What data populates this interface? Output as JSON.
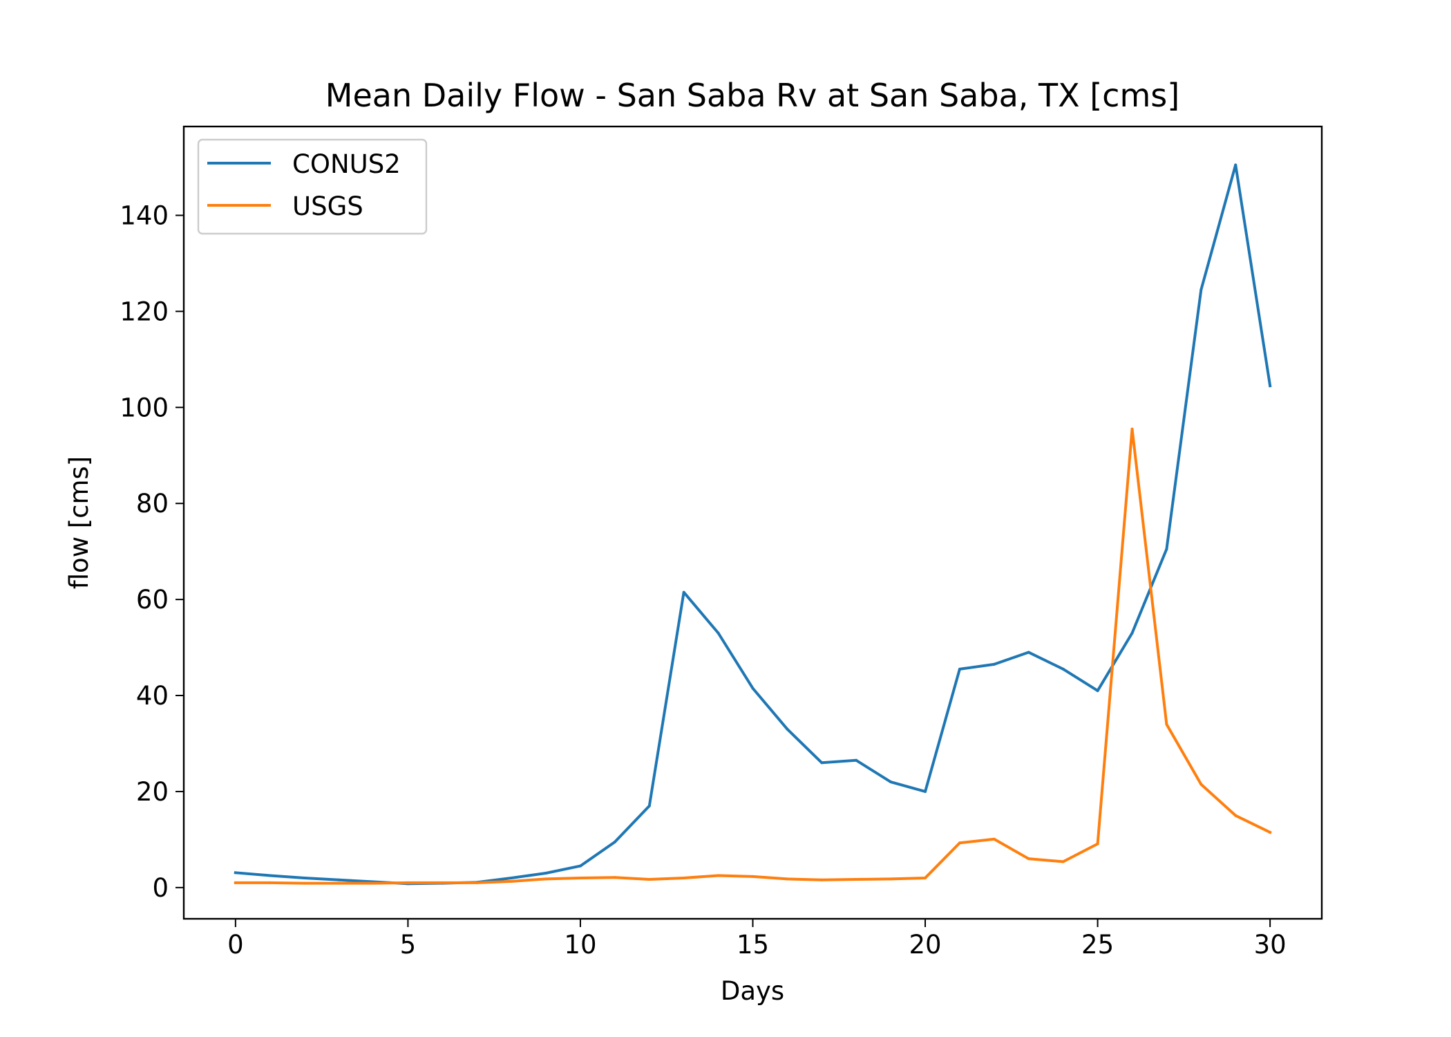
{
  "chart_data": {
    "type": "line",
    "title": "Mean Daily Flow - San Saba Rv at San Saba, TX [cms]",
    "xlabel": "Days",
    "ylabel": "flow [cms]",
    "xlim": [
      -1.5,
      31.5
    ],
    "ylim": [
      -6.5,
      158.5
    ],
    "xticks": [
      0,
      5,
      10,
      15,
      20,
      25,
      30
    ],
    "yticks": [
      0,
      20,
      40,
      60,
      80,
      100,
      120,
      140
    ],
    "grid": false,
    "legend_position": "upper left",
    "x": [
      0,
      1,
      2,
      3,
      4,
      5,
      6,
      7,
      8,
      9,
      10,
      11,
      12,
      13,
      14,
      15,
      16,
      17,
      18,
      19,
      20,
      21,
      22,
      23,
      24,
      25,
      26,
      27,
      28,
      29,
      30
    ],
    "series": [
      {
        "name": "CONUS2",
        "color": "#1f77b4",
        "values": [
          3.1,
          2.5,
          2.0,
          1.6,
          1.2,
          0.8,
          0.9,
          1.1,
          2.0,
          3.0,
          4.5,
          9.5,
          17.0,
          61.5,
          53.0,
          41.5,
          33.0,
          26.0,
          26.5,
          22.0,
          20.0,
          45.5,
          46.5,
          49.0,
          45.5,
          41.0,
          53.0,
          70.5,
          124.5,
          150.5,
          104.5
        ]
      },
      {
        "name": "USGS",
        "color": "#ff7f0e",
        "values": [
          1.0,
          1.0,
          0.9,
          0.9,
          0.9,
          1.0,
          1.0,
          1.0,
          1.3,
          1.8,
          2.0,
          2.1,
          1.7,
          2.0,
          2.5,
          2.3,
          1.8,
          1.6,
          1.7,
          1.8,
          2.0,
          9.3,
          10.1,
          6.0,
          5.4,
          9.1,
          95.5,
          34.0,
          21.5,
          15.0,
          11.5
        ]
      }
    ]
  }
}
